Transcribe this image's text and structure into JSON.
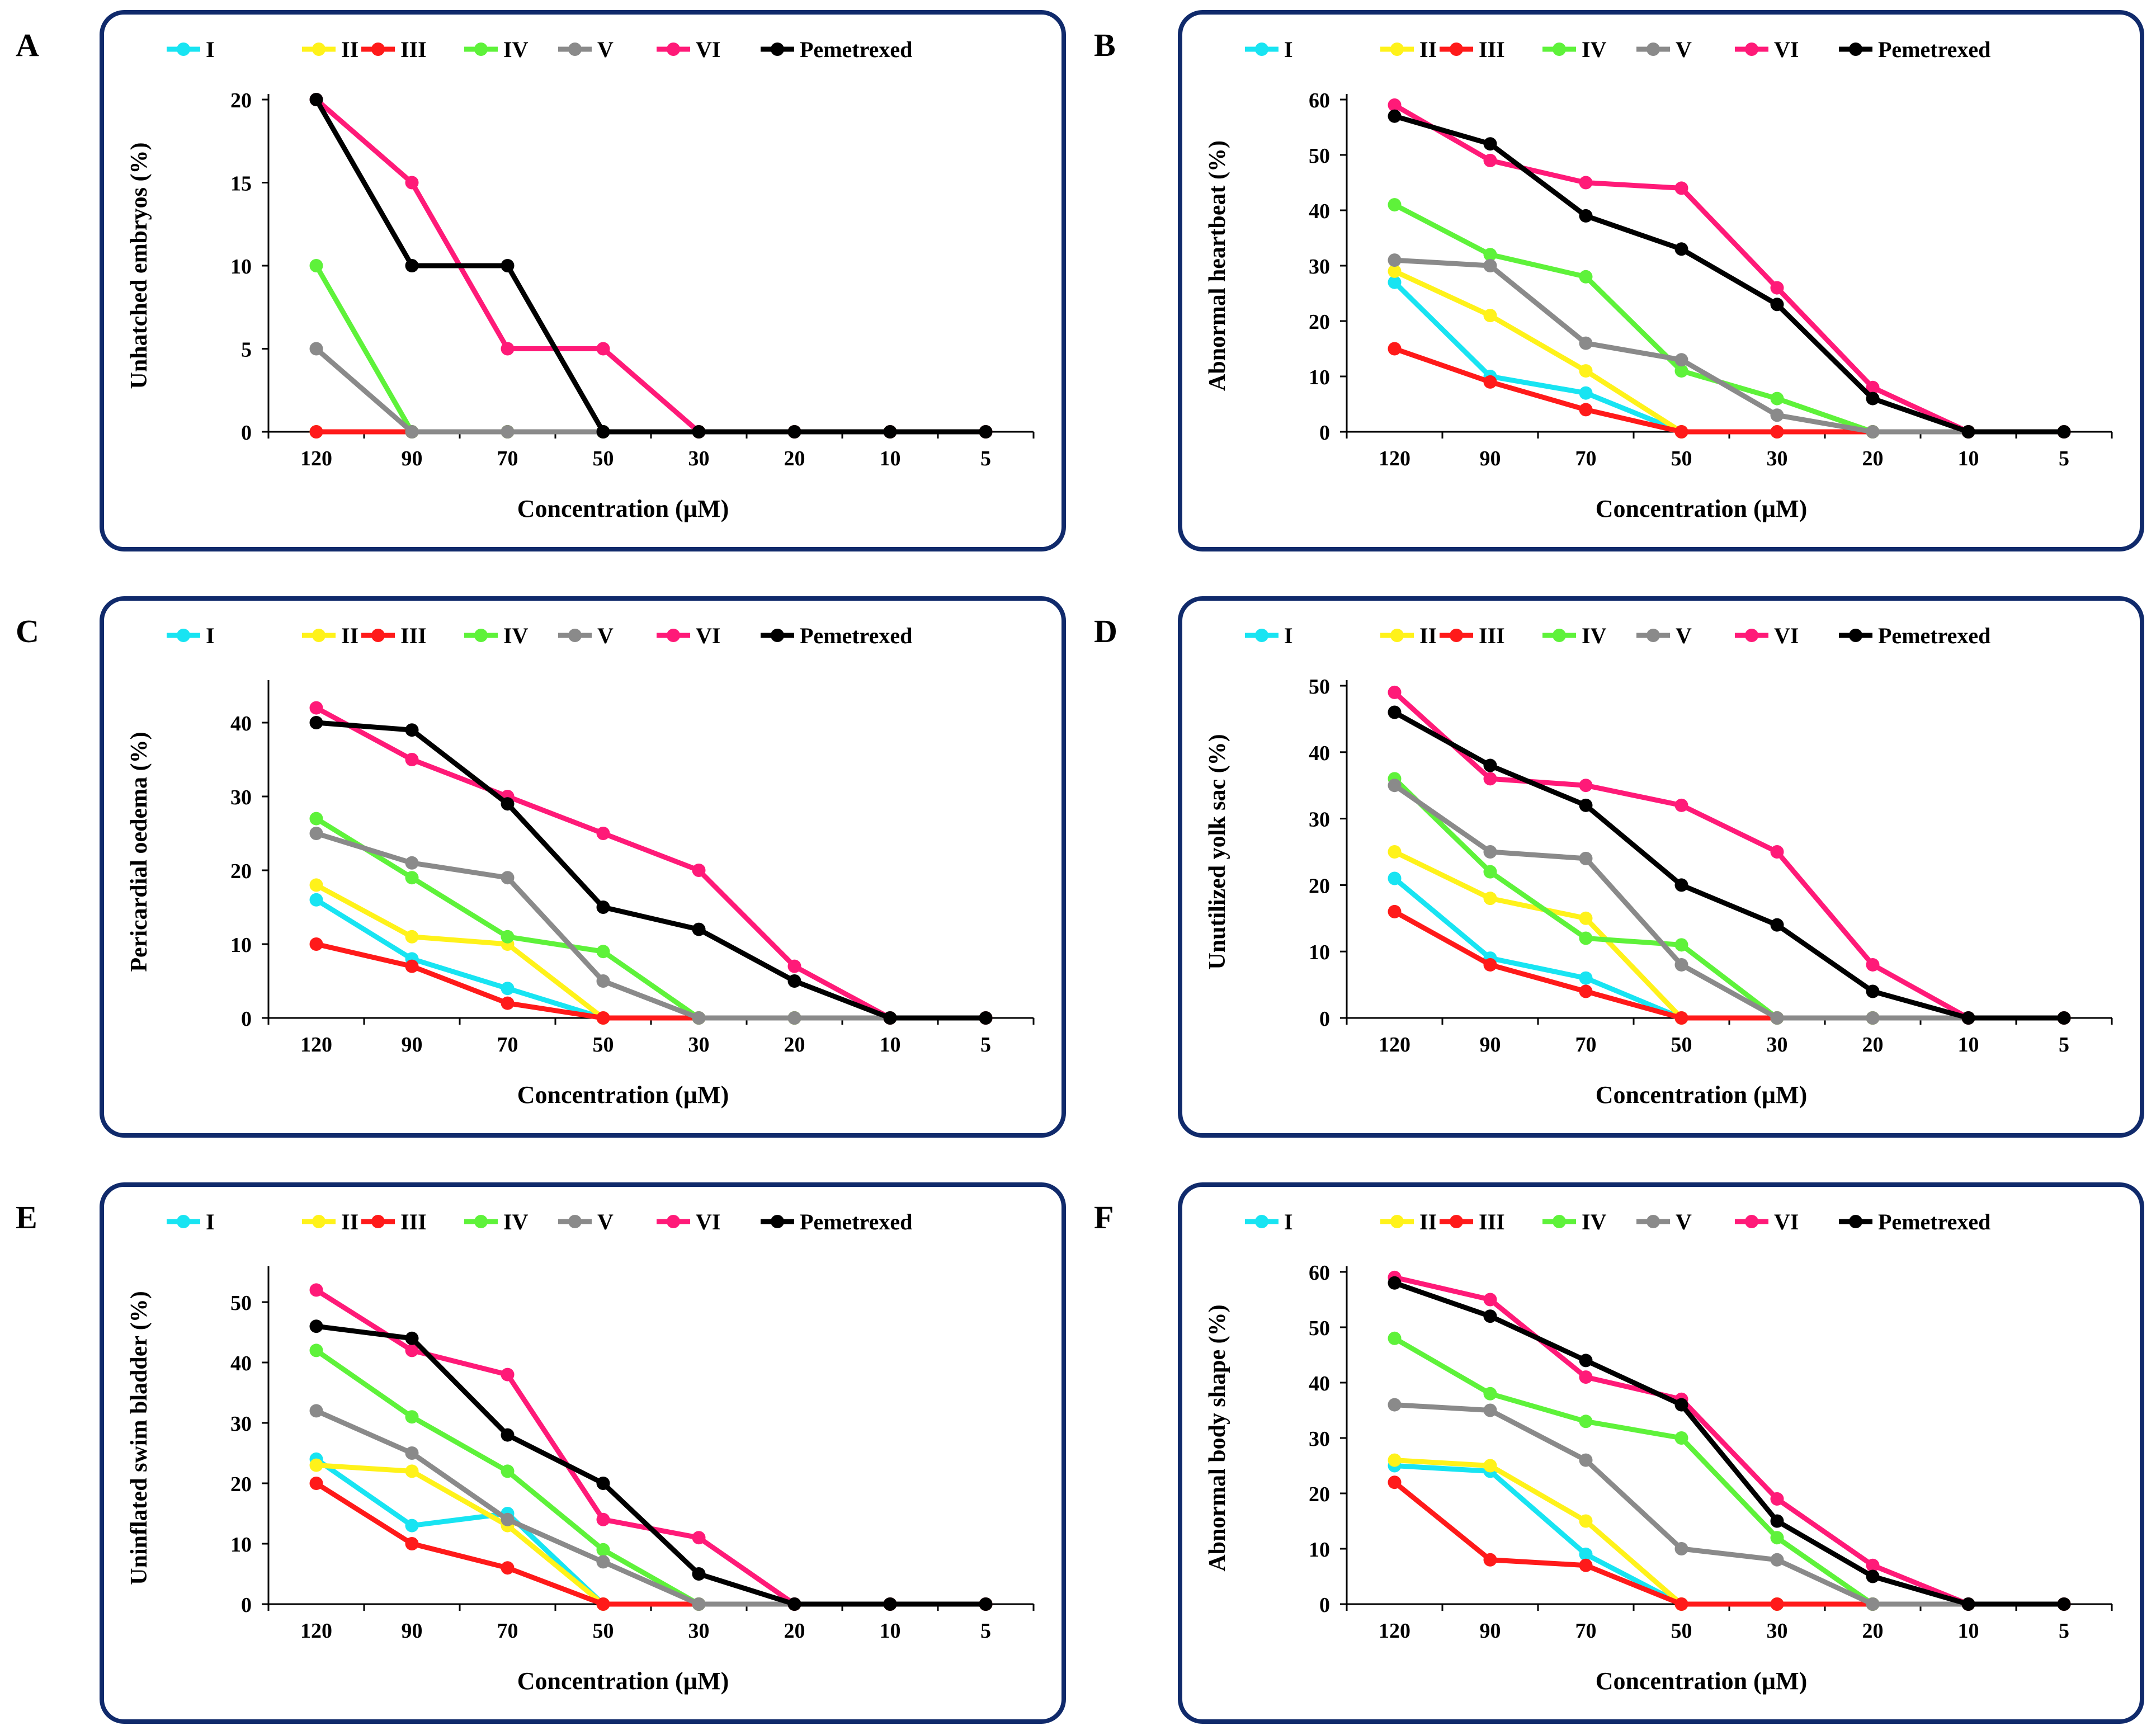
{
  "colors": {
    "I": "#18e4f2",
    "II": "#fff21a",
    "III": "#ff1a1a",
    "IV": "#5ef23a",
    "V": "#8a8a8a",
    "VI": "#ff1a78",
    "Pemetrexed": "#000000",
    "frame": "#102a6b"
  },
  "legend": [
    "I",
    "II",
    "III",
    "IV",
    "V",
    "VI",
    "Pemetrexed"
  ],
  "chart_data": [
    {
      "panel": "A",
      "type": "line",
      "categories": [
        "120",
        "90",
        "70",
        "50",
        "30",
        "20",
        "10",
        "5"
      ],
      "xlabel": "Concentration (µM)",
      "ylabel": "Unhatched embryos (%)",
      "ylim": [
        0,
        20
      ],
      "yticks": [
        0,
        5,
        10,
        15,
        20
      ],
      "series": [
        {
          "name": "I",
          "values": [
            0,
            0,
            0,
            0,
            0,
            0,
            0,
            0
          ]
        },
        {
          "name": "II",
          "values": [
            0,
            0,
            0,
            0,
            0,
            0,
            0,
            0
          ]
        },
        {
          "name": "III",
          "values": [
            0,
            0,
            0,
            0,
            0,
            0,
            0,
            0
          ]
        },
        {
          "name": "IV",
          "values": [
            10,
            0,
            0,
            0,
            0,
            0,
            0,
            0
          ]
        },
        {
          "name": "V",
          "values": [
            5,
            0,
            0,
            0,
            0,
            0,
            0,
            0
          ]
        },
        {
          "name": "VI",
          "values": [
            20,
            15,
            5,
            5,
            0,
            0,
            0,
            0
          ]
        },
        {
          "name": "Pemetrexed",
          "values": [
            20,
            10,
            10,
            0,
            0,
            0,
            0,
            0
          ]
        }
      ]
    },
    {
      "panel": "B",
      "type": "line",
      "categories": [
        "120",
        "90",
        "70",
        "50",
        "30",
        "20",
        "10",
        "5"
      ],
      "xlabel": "Concentration (µM)",
      "ylabel": "Abnormal heartbeat (%)",
      "ylim": [
        0,
        60
      ],
      "yticks": [
        0,
        10,
        20,
        30,
        40,
        50,
        60
      ],
      "series": [
        {
          "name": "I",
          "values": [
            27,
            10,
            7,
            0,
            0,
            0,
            0,
            0
          ]
        },
        {
          "name": "II",
          "values": [
            29,
            21,
            11,
            0,
            0,
            0,
            0,
            0
          ]
        },
        {
          "name": "III",
          "values": [
            15,
            9,
            4,
            0,
            0,
            0,
            0,
            0
          ]
        },
        {
          "name": "IV",
          "values": [
            41,
            32,
            28,
            11,
            6,
            0,
            0,
            0
          ]
        },
        {
          "name": "V",
          "values": [
            31,
            30,
            16,
            13,
            3,
            0,
            0,
            0
          ]
        },
        {
          "name": "VI",
          "values": [
            59,
            49,
            45,
            44,
            26,
            8,
            0,
            0
          ]
        },
        {
          "name": "Pemetrexed",
          "values": [
            57,
            52,
            39,
            33,
            23,
            6,
            0,
            0
          ]
        }
      ]
    },
    {
      "panel": "C",
      "type": "line",
      "categories": [
        "120",
        "90",
        "70",
        "50",
        "30",
        "20",
        "10",
        "5"
      ],
      "xlabel": "Concentration (µM)",
      "ylabel": "Pericardial oedema (%)",
      "ylim": [
        0,
        45
      ],
      "yticks": [
        0,
        10,
        20,
        30,
        40
      ],
      "series": [
        {
          "name": "I",
          "values": [
            16,
            8,
            4,
            0,
            0,
            0,
            0,
            0
          ]
        },
        {
          "name": "II",
          "values": [
            18,
            11,
            10,
            0,
            0,
            0,
            0,
            0
          ]
        },
        {
          "name": "III",
          "values": [
            10,
            7,
            2,
            0,
            0,
            0,
            0,
            0
          ]
        },
        {
          "name": "IV",
          "values": [
            27,
            19,
            11,
            9,
            0,
            0,
            0,
            0
          ]
        },
        {
          "name": "V",
          "values": [
            25,
            21,
            19,
            5,
            0,
            0,
            0,
            0
          ]
        },
        {
          "name": "VI",
          "values": [
            42,
            35,
            30,
            25,
            20,
            7,
            0,
            0
          ]
        },
        {
          "name": "Pemetrexed",
          "values": [
            40,
            39,
            29,
            15,
            12,
            5,
            0,
            0
          ]
        }
      ]
    },
    {
      "panel": "D",
      "type": "line",
      "categories": [
        "120",
        "90",
        "70",
        "50",
        "30",
        "20",
        "10",
        "5"
      ],
      "xlabel": "Concentration (µM)",
      "ylabel": "Unutilized yolk sac (%)",
      "ylim": [
        0,
        50
      ],
      "yticks": [
        0,
        10,
        20,
        30,
        40,
        50
      ],
      "series": [
        {
          "name": "I",
          "values": [
            21,
            9,
            6,
            0,
            0,
            0,
            0,
            0
          ]
        },
        {
          "name": "II",
          "values": [
            25,
            18,
            15,
            0,
            0,
            0,
            0,
            0
          ]
        },
        {
          "name": "III",
          "values": [
            16,
            8,
            4,
            0,
            0,
            0,
            0,
            0
          ]
        },
        {
          "name": "IV",
          "values": [
            36,
            22,
            12,
            11,
            0,
            0,
            0,
            0
          ]
        },
        {
          "name": "V",
          "values": [
            35,
            25,
            24,
            8,
            0,
            0,
            0,
            0
          ]
        },
        {
          "name": "VI",
          "values": [
            49,
            36,
            35,
            32,
            25,
            8,
            0,
            0
          ]
        },
        {
          "name": "Pemetrexed",
          "values": [
            46,
            38,
            32,
            20,
            14,
            4,
            0,
            0
          ]
        }
      ]
    },
    {
      "panel": "E",
      "type": "line",
      "categories": [
        "120",
        "90",
        "70",
        "50",
        "30",
        "20",
        "10",
        "5"
      ],
      "xlabel": "Concentration (µM)",
      "ylabel": "Uninflated swim bladder (%)",
      "ylim": [
        0,
        55
      ],
      "yticks": [
        0,
        10,
        20,
        30,
        40,
        50
      ],
      "series": [
        {
          "name": "I",
          "values": [
            24,
            13,
            15,
            0,
            0,
            0,
            0,
            0
          ]
        },
        {
          "name": "II",
          "values": [
            23,
            22,
            13,
            0,
            0,
            0,
            0,
            0
          ]
        },
        {
          "name": "III",
          "values": [
            20,
            10,
            6,
            0,
            0,
            0,
            0,
            0
          ]
        },
        {
          "name": "IV",
          "values": [
            42,
            31,
            22,
            9,
            0,
            0,
            0,
            0
          ]
        },
        {
          "name": "V",
          "values": [
            32,
            25,
            14,
            7,
            0,
            0,
            0,
            0
          ]
        },
        {
          "name": "VI",
          "values": [
            52,
            42,
            38,
            14,
            11,
            0,
            0,
            0
          ]
        },
        {
          "name": "Pemetrexed",
          "values": [
            46,
            44,
            28,
            20,
            5,
            0,
            0,
            0
          ]
        }
      ]
    },
    {
      "panel": "F",
      "type": "line",
      "categories": [
        "120",
        "90",
        "70",
        "50",
        "30",
        "20",
        "10",
        "5"
      ],
      "xlabel": "Concentration (µM)",
      "ylabel": "Abnormal body shape (%)",
      "ylim": [
        0,
        60
      ],
      "yticks": [
        0,
        10,
        20,
        30,
        40,
        50,
        60
      ],
      "series": [
        {
          "name": "I",
          "values": [
            25,
            24,
            9,
            0,
            0,
            0,
            0,
            0
          ]
        },
        {
          "name": "II",
          "values": [
            26,
            25,
            15,
            0,
            0,
            0,
            0,
            0
          ]
        },
        {
          "name": "III",
          "values": [
            22,
            8,
            7,
            0,
            0,
            0,
            0,
            0
          ]
        },
        {
          "name": "IV",
          "values": [
            48,
            38,
            33,
            30,
            12,
            0,
            0,
            0
          ]
        },
        {
          "name": "V",
          "values": [
            36,
            35,
            26,
            10,
            8,
            0,
            0,
            0
          ]
        },
        {
          "name": "VI",
          "values": [
            59,
            55,
            41,
            37,
            19,
            7,
            0,
            0
          ]
        },
        {
          "name": "Pemetrexed",
          "values": [
            58,
            52,
            44,
            36,
            15,
            5,
            0,
            0
          ]
        }
      ]
    }
  ]
}
